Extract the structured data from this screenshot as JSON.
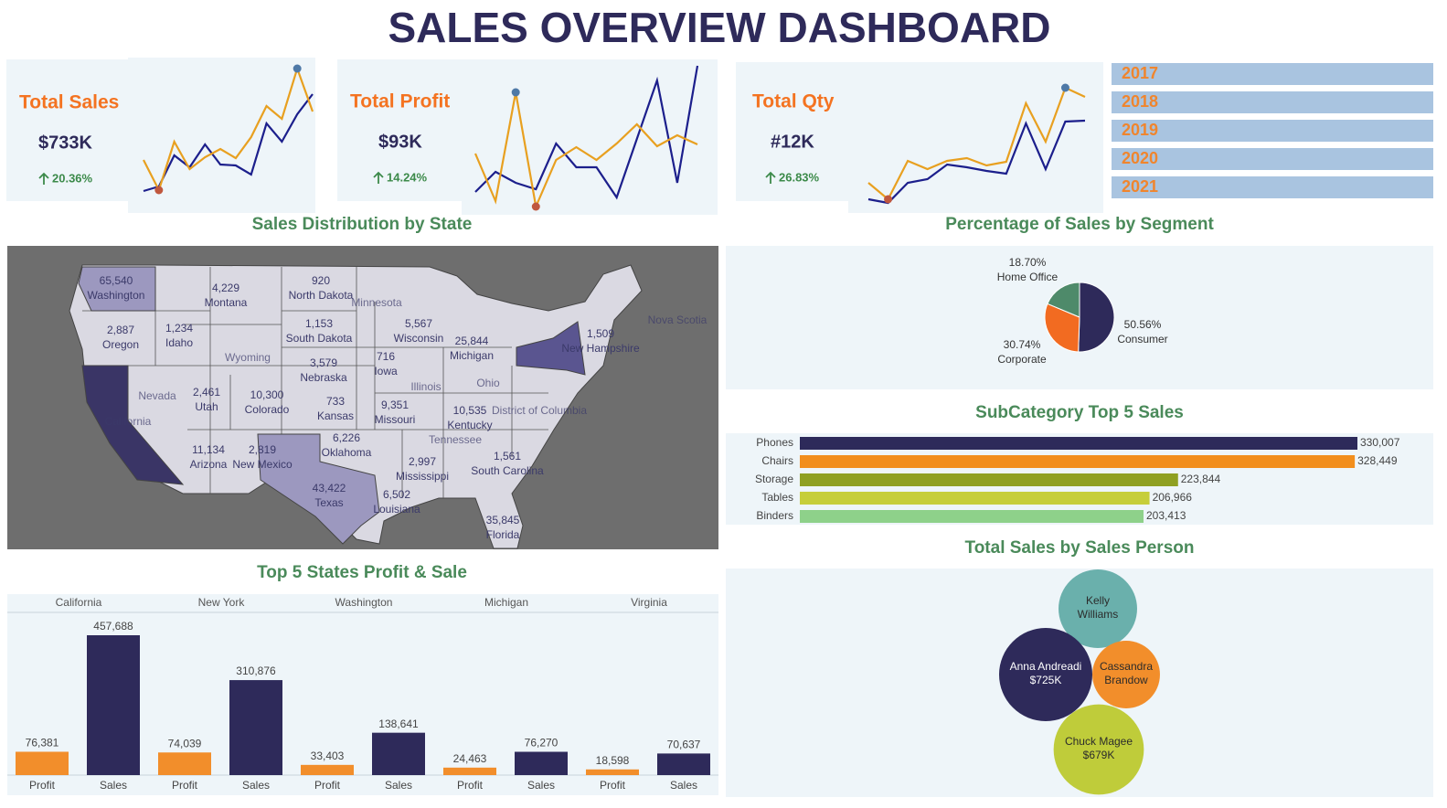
{
  "title": "SALES OVERVIEW DASHBOARD",
  "kpis": [
    {
      "label": "Total Sales",
      "value": "$733K",
      "change": "20.36%"
    },
    {
      "label": "Total Profit",
      "value": "$93K",
      "change": "14.24%"
    },
    {
      "label": "Total Qty",
      "value": "#12K",
      "change": "26.83%"
    }
  ],
  "years": [
    "2017",
    "2018",
    "2019",
    "2020",
    "2021"
  ],
  "chart_data": [
    {
      "type": "line",
      "markers": {
        "max_color": "#4e79a7",
        "min_color": "#c0573e"
      },
      "series": [
        {
          "color": "#1c1f8c",
          "values": [
            31,
            36,
            70,
            57,
            82,
            60,
            59,
            49,
            105,
            85,
            115,
            137
          ]
        },
        {
          "color": "#e8a020",
          "values": [
            65,
            32,
            85,
            55,
            68,
            77,
            67,
            90,
            124,
            110,
            165,
            118
          ]
        }
      ]
    },
    {
      "type": "line",
      "markers": {
        "max_color": "#4e79a7",
        "min_color": "#c0573e"
      },
      "series": [
        {
          "color": "#1c1f8c",
          "values": [
            30,
            52,
            40,
            33,
            83,
            57,
            57,
            24,
            88,
            152,
            40,
            168
          ]
        },
        {
          "color": "#e8a020",
          "values": [
            72,
            20,
            139,
            14,
            65,
            79,
            65,
            83,
            104,
            80,
            92,
            82
          ]
        }
      ]
    },
    {
      "type": "line",
      "markers": {
        "max_color": "#4e79a7",
        "min_color": "#c0573e"
      },
      "series": [
        {
          "color": "#1c1f8c",
          "values": [
            22,
            18,
            40,
            44,
            60,
            57,
            53,
            50,
            105,
            55,
            107,
            108
          ]
        },
        {
          "color": "#e8a020",
          "values": [
            40,
            22,
            64,
            55,
            64,
            67,
            59,
            63,
            127,
            85,
            144,
            134
          ]
        }
      ]
    },
    {
      "type": "map",
      "title": "Sales Distribution by State",
      "categories": [
        "Washington",
        "Montana",
        "North Dakota",
        "Oregon",
        "Idaho",
        "South Dakota",
        "Wisconsin",
        "Michigan",
        "New Hampshire",
        "Nebraska",
        "Iowa",
        "Utah",
        "Colorado",
        "Kansas",
        "Missouri",
        "Kentucky",
        "Arizona",
        "New Mexico",
        "Oklahoma",
        "Texas",
        "Mississippi",
        "Louisiana",
        "South Carolina",
        "Florida"
      ],
      "values": [
        65540,
        4229,
        920,
        2887,
        1234,
        1153,
        5567,
        25844,
        1509,
        3579,
        716,
        2461,
        10300,
        733,
        9351,
        10535,
        11134,
        2819,
        6226,
        43422,
        2997,
        6502,
        1561,
        35845
      ],
      "value_labels": [
        "65,540",
        "4,229",
        "920",
        "2,887",
        "1,234",
        "1,153",
        "5,567",
        "25,844",
        "1,509",
        "3,579",
        "716",
        "2,461",
        "10,300",
        "733",
        "9,351",
        "10,535",
        "11,134",
        "2,819",
        "6,226",
        "43,422",
        "2,997",
        "6,502",
        "1,561",
        "35,845"
      ],
      "places": [
        "Wyoming",
        "Nevada",
        "Illinois",
        "Ohio",
        "Tennessee",
        "Minnesota",
        "District of Columbia",
        "Nova Scotia",
        "California"
      ]
    },
    {
      "type": "pie",
      "title": "Percentage of Sales by Segment",
      "categories": [
        "Consumer",
        "Corporate",
        "Home Office"
      ],
      "values": [
        50.56,
        30.74,
        18.7
      ],
      "value_labels": [
        "50.56%",
        "30.74%",
        "18.70%"
      ],
      "colors": [
        "#2e2a5a",
        "#f26b21",
        "#4e8a6a"
      ]
    },
    {
      "type": "bar",
      "orientation": "horizontal",
      "title": "SubCategory Top 5 Sales",
      "categories": [
        "Phones",
        "Chairs",
        "Storage",
        "Tables",
        "Binders"
      ],
      "values": [
        330007,
        328449,
        223844,
        206966,
        203413
      ],
      "value_labels": [
        "330,007",
        "328,449",
        "223,844",
        "206,966",
        "203,413"
      ],
      "colors": [
        "#2d2a5a",
        "#f28e1c",
        "#8fa022",
        "#c6ce3a",
        "#8ed18a"
      ]
    },
    {
      "type": "bubble",
      "title": "Total Sales by Sales Person",
      "categories": [
        "Kelly Williams",
        "Cassandra Brandow",
        "Anna Andreadi",
        "Chuck Magee"
      ],
      "values": [
        515000,
        381000,
        725000,
        679000
      ],
      "value_labels": [
        null,
        null,
        "$725K",
        "$679K"
      ],
      "colors": [
        "#6ab0ac",
        "#f28e2b",
        "#2e2a5a",
        "#bfcc3a"
      ]
    },
    {
      "type": "bar",
      "title": "Top 5 States Profit & Sale",
      "categories": [
        "California",
        "New York",
        "Washington",
        "Michigan",
        "Virginia"
      ],
      "series": [
        {
          "name": "Profit",
          "color": "#f28e2b",
          "values": [
            76381,
            74039,
            33403,
            24463,
            18598
          ],
          "value_labels": [
            "76,381",
            "74,039",
            "33,403",
            "24,463",
            "18,598"
          ]
        },
        {
          "name": "Sales",
          "color": "#2e2a5a",
          "values": [
            457688,
            310876,
            138641,
            76270,
            70637
          ],
          "value_labels": [
            "457,688",
            "310,876",
            "138,641",
            "76,270",
            "70,637"
          ]
        }
      ]
    }
  ]
}
